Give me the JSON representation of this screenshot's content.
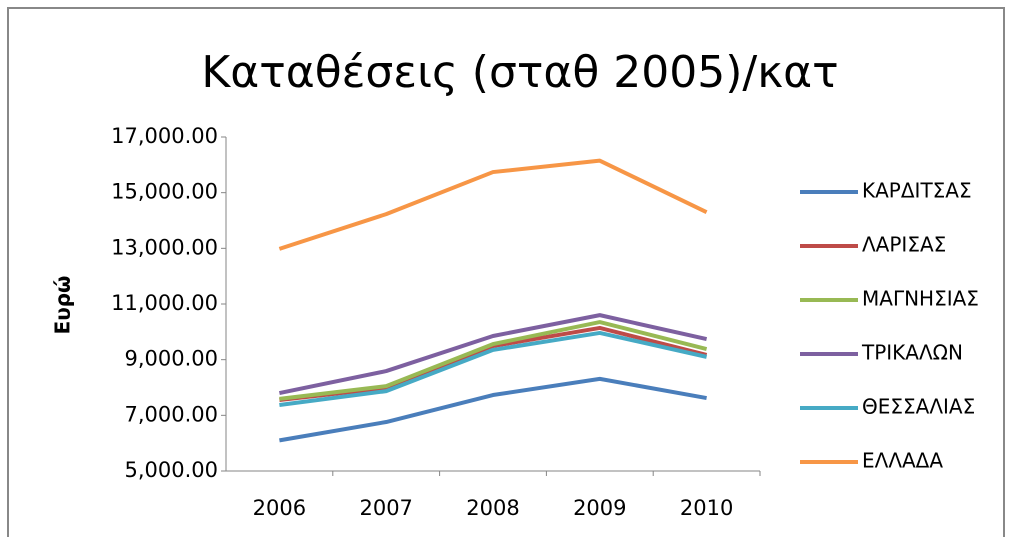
{
  "chart_data": {
    "type": "line",
    "title": "Καταθέσεις (σταθ 2005)/κατ",
    "y_label": "Ευρώ",
    "categories": [
      "2006",
      "2007",
      "2008",
      "2009",
      "2010"
    ],
    "series": [
      {
        "name": "ΚΑΡΔΙΤΣΑΣ",
        "color": "#4a7ebb",
        "values": [
          6100,
          6760,
          7730,
          8310,
          7620
        ]
      },
      {
        "name": "ΛΑΡΙΣΑΣ",
        "color": "#be4b48",
        "values": [
          7550,
          7980,
          9490,
          10140,
          9170
        ]
      },
      {
        "name": "ΜΑΓΝΗΣΙΑΣ",
        "color": "#98b954",
        "values": [
          7590,
          8050,
          9560,
          10350,
          9380
        ]
      },
      {
        "name": "ΤΡΙΚΑΛΩΝ",
        "color": "#7d60a0",
        "values": [
          7800,
          8590,
          9850,
          10600,
          9740
        ]
      },
      {
        "name": "ΘΕΣΣΑΛΙΑΣ",
        "color": "#46aac5",
        "values": [
          7370,
          7870,
          9350,
          9960,
          9100
        ]
      },
      {
        "name": "ΕΛΛΑΔΑ",
        "color": "#f79646",
        "values": [
          12980,
          14230,
          15740,
          16150,
          14300
        ]
      }
    ],
    "ylim": [
      5000,
      17000
    ],
    "yticks": [
      {
        "value": 5000,
        "label": "5,000.00"
      },
      {
        "value": 7000,
        "label": "7,000.00"
      },
      {
        "value": 9000,
        "label": "9,000.00"
      },
      {
        "value": 11000,
        "label": "11,000.00"
      },
      {
        "value": 13000,
        "label": "13,000.00"
      },
      {
        "value": 15000,
        "label": "15,000.00"
      },
      {
        "value": 17000,
        "label": "17,000.00"
      }
    ],
    "grid": false,
    "legend": "right"
  }
}
